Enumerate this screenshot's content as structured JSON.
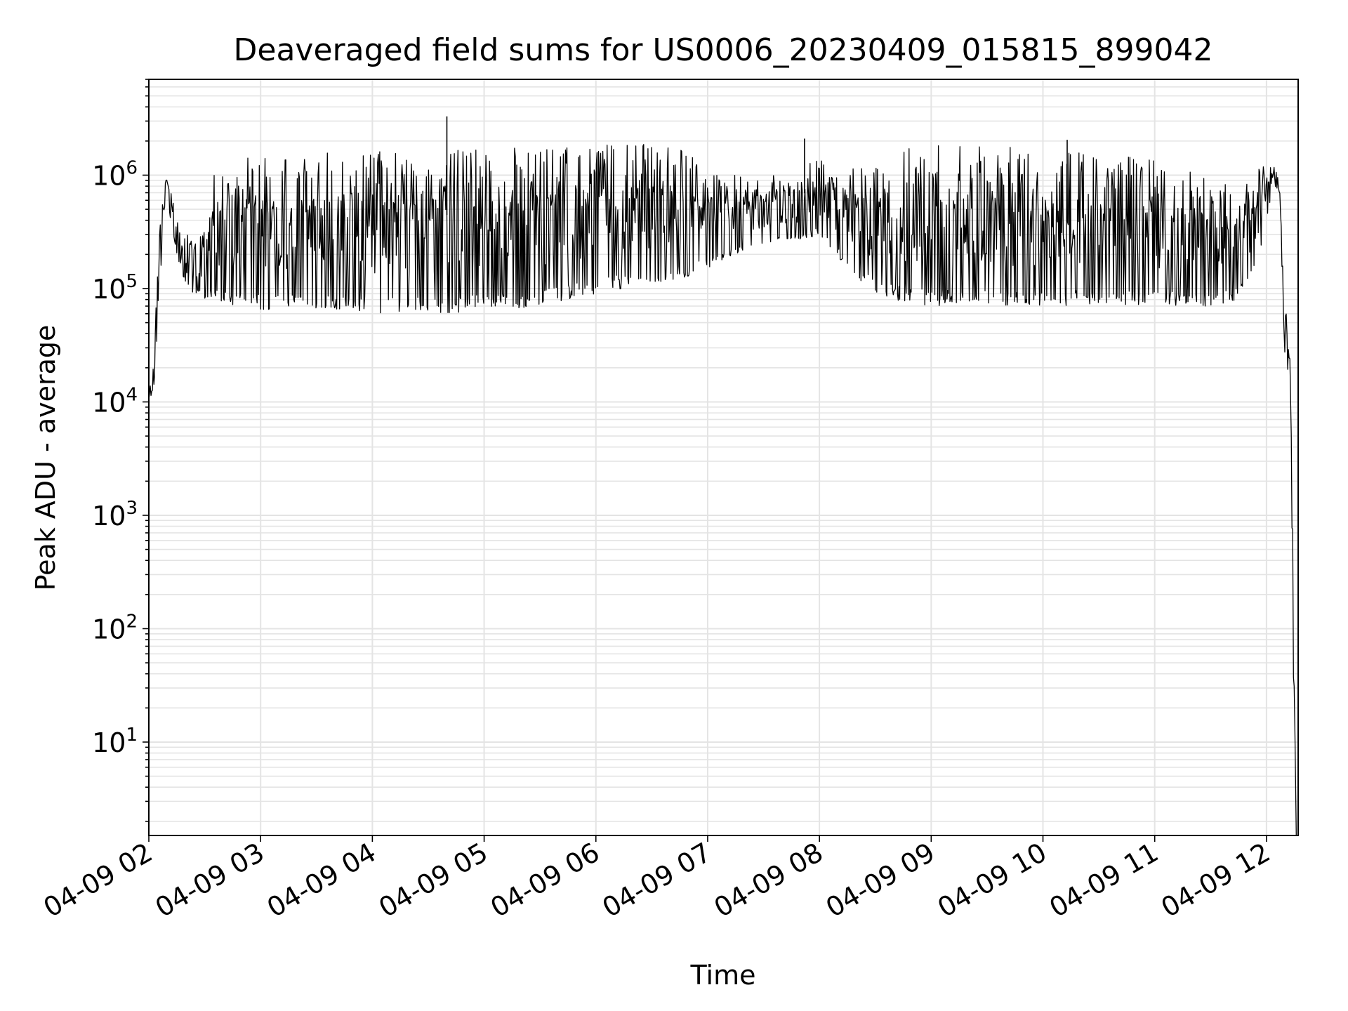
{
  "chart_data": {
    "type": "line",
    "title": "Deaveraged field sums for US0006_20230409_015815_899042",
    "xlabel": "Time",
    "ylabel": "Peak ADU - average",
    "x_scale": "time",
    "y_scale": "log",
    "xlim": [
      "2023-04-09 02:00",
      "2023-04-09 12:17"
    ],
    "ylim": [
      1.5,
      7000000
    ],
    "grid": true,
    "legend": "none",
    "x_ticks": [
      "04-09 02",
      "04-09 03",
      "04-09 04",
      "04-09 05",
      "04-09 06",
      "04-09 07",
      "04-09 08",
      "04-09 09",
      "04-09 10",
      "04-09 11",
      "04-09 12"
    ],
    "y_ticks": [
      {
        "base": "10",
        "exp": "1",
        "value": 10
      },
      {
        "base": "10",
        "exp": "2",
        "value": 100
      },
      {
        "base": "10",
        "exp": "3",
        "value": 1000
      },
      {
        "base": "10",
        "exp": "4",
        "value": 10000
      },
      {
        "base": "10",
        "exp": "5",
        "value": 100000
      },
      {
        "base": "10",
        "exp": "6",
        "value": 1000000
      }
    ],
    "series": [
      {
        "line_color": "#000000",
        "envelope": {
          "x": [
            "2023-04-09 02:00",
            "2023-04-09 02:03",
            "2023-04-09 02:06",
            "2023-04-09 02:09",
            "2023-04-09 02:15",
            "2023-04-09 02:20",
            "2023-04-09 02:25",
            "2023-04-09 02:30",
            "2023-04-09 02:35",
            "2023-04-09 02:40",
            "2023-04-09 02:45",
            "2023-04-09 02:50",
            "2023-04-09 03:00",
            "2023-04-09 03:15",
            "2023-04-09 03:30",
            "2023-04-09 03:45",
            "2023-04-09 04:00",
            "2023-04-09 04:15",
            "2023-04-09 04:30",
            "2023-04-09 04:45",
            "2023-04-09 05:00",
            "2023-04-09 05:15",
            "2023-04-09 05:30",
            "2023-04-09 05:45",
            "2023-04-09 06:00",
            "2023-04-09 06:15",
            "2023-04-09 06:30",
            "2023-04-09 06:45",
            "2023-04-09 07:00",
            "2023-04-09 07:15",
            "2023-04-09 07:30",
            "2023-04-09 07:45",
            "2023-04-09 08:00",
            "2023-04-09 08:15",
            "2023-04-09 08:30",
            "2023-04-09 08:45",
            "2023-04-09 09:00",
            "2023-04-09 09:15",
            "2023-04-09 09:30",
            "2023-04-09 09:45",
            "2023-04-09 10:00",
            "2023-04-09 10:15",
            "2023-04-09 10:30",
            "2023-04-09 10:45",
            "2023-04-09 11:00",
            "2023-04-09 11:15",
            "2023-04-09 11:30",
            "2023-04-09 11:45",
            "2023-04-09 11:55",
            "2023-04-09 12:00",
            "2023-04-09 12:04",
            "2023-04-09 12:07",
            "2023-04-09 12:10",
            "2023-04-09 12:12",
            "2023-04-09 12:13",
            "2023-04-09 12:14",
            "2023-04-09 12:15",
            "2023-04-09 12:16"
          ],
          "low": [
            9000,
            15000,
            100000,
            700000,
            200000,
            100000,
            90000,
            80000,
            80000,
            75000,
            70000,
            70000,
            65000,
            65000,
            65000,
            65000,
            60000,
            60000,
            60000,
            60000,
            65000,
            65000,
            70000,
            80000,
            90000,
            100000,
            110000,
            120000,
            150000,
            200000,
            250000,
            250000,
            300000,
            150000,
            90000,
            75000,
            70000,
            70000,
            70000,
            70000,
            70000,
            70000,
            70000,
            70000,
            70000,
            70000,
            70000,
            80000,
            150000,
            400000,
            800000,
            700000,
            20000,
            18000,
            10000,
            100,
            10,
            1.5
          ],
          "high": [
            12000,
            40000,
            400000,
            1100000,
            500000,
            300000,
            350000,
            400000,
            1000000,
            1300000,
            1400000,
            1450000,
            1500000,
            1500000,
            1550000,
            1600000,
            1600000,
            1650000,
            1700000,
            1700000,
            1750000,
            1750000,
            1800000,
            1800000,
            1850000,
            1900000,
            1900000,
            1800000,
            1200000,
            1000000,
            900000,
            1200000,
            1400000,
            1300000,
            1500000,
            1800000,
            1900000,
            1900000,
            1800000,
            1750000,
            1700000,
            1650000,
            1600000,
            1500000,
            1400000,
            1300000,
            1000000,
            800000,
            1100000,
            1250000,
            1200000,
            900000,
            90000,
            30000,
            25000,
            1000,
            50,
            1.5
          ]
        },
        "spikes": [
          {
            "x": "2023-04-09 04:40",
            "y": 3300000
          },
          {
            "x": "2023-04-09 07:52",
            "y": 2100000
          },
          {
            "x": "2023-04-09 10:13",
            "y": 2050000
          }
        ]
      }
    ]
  }
}
